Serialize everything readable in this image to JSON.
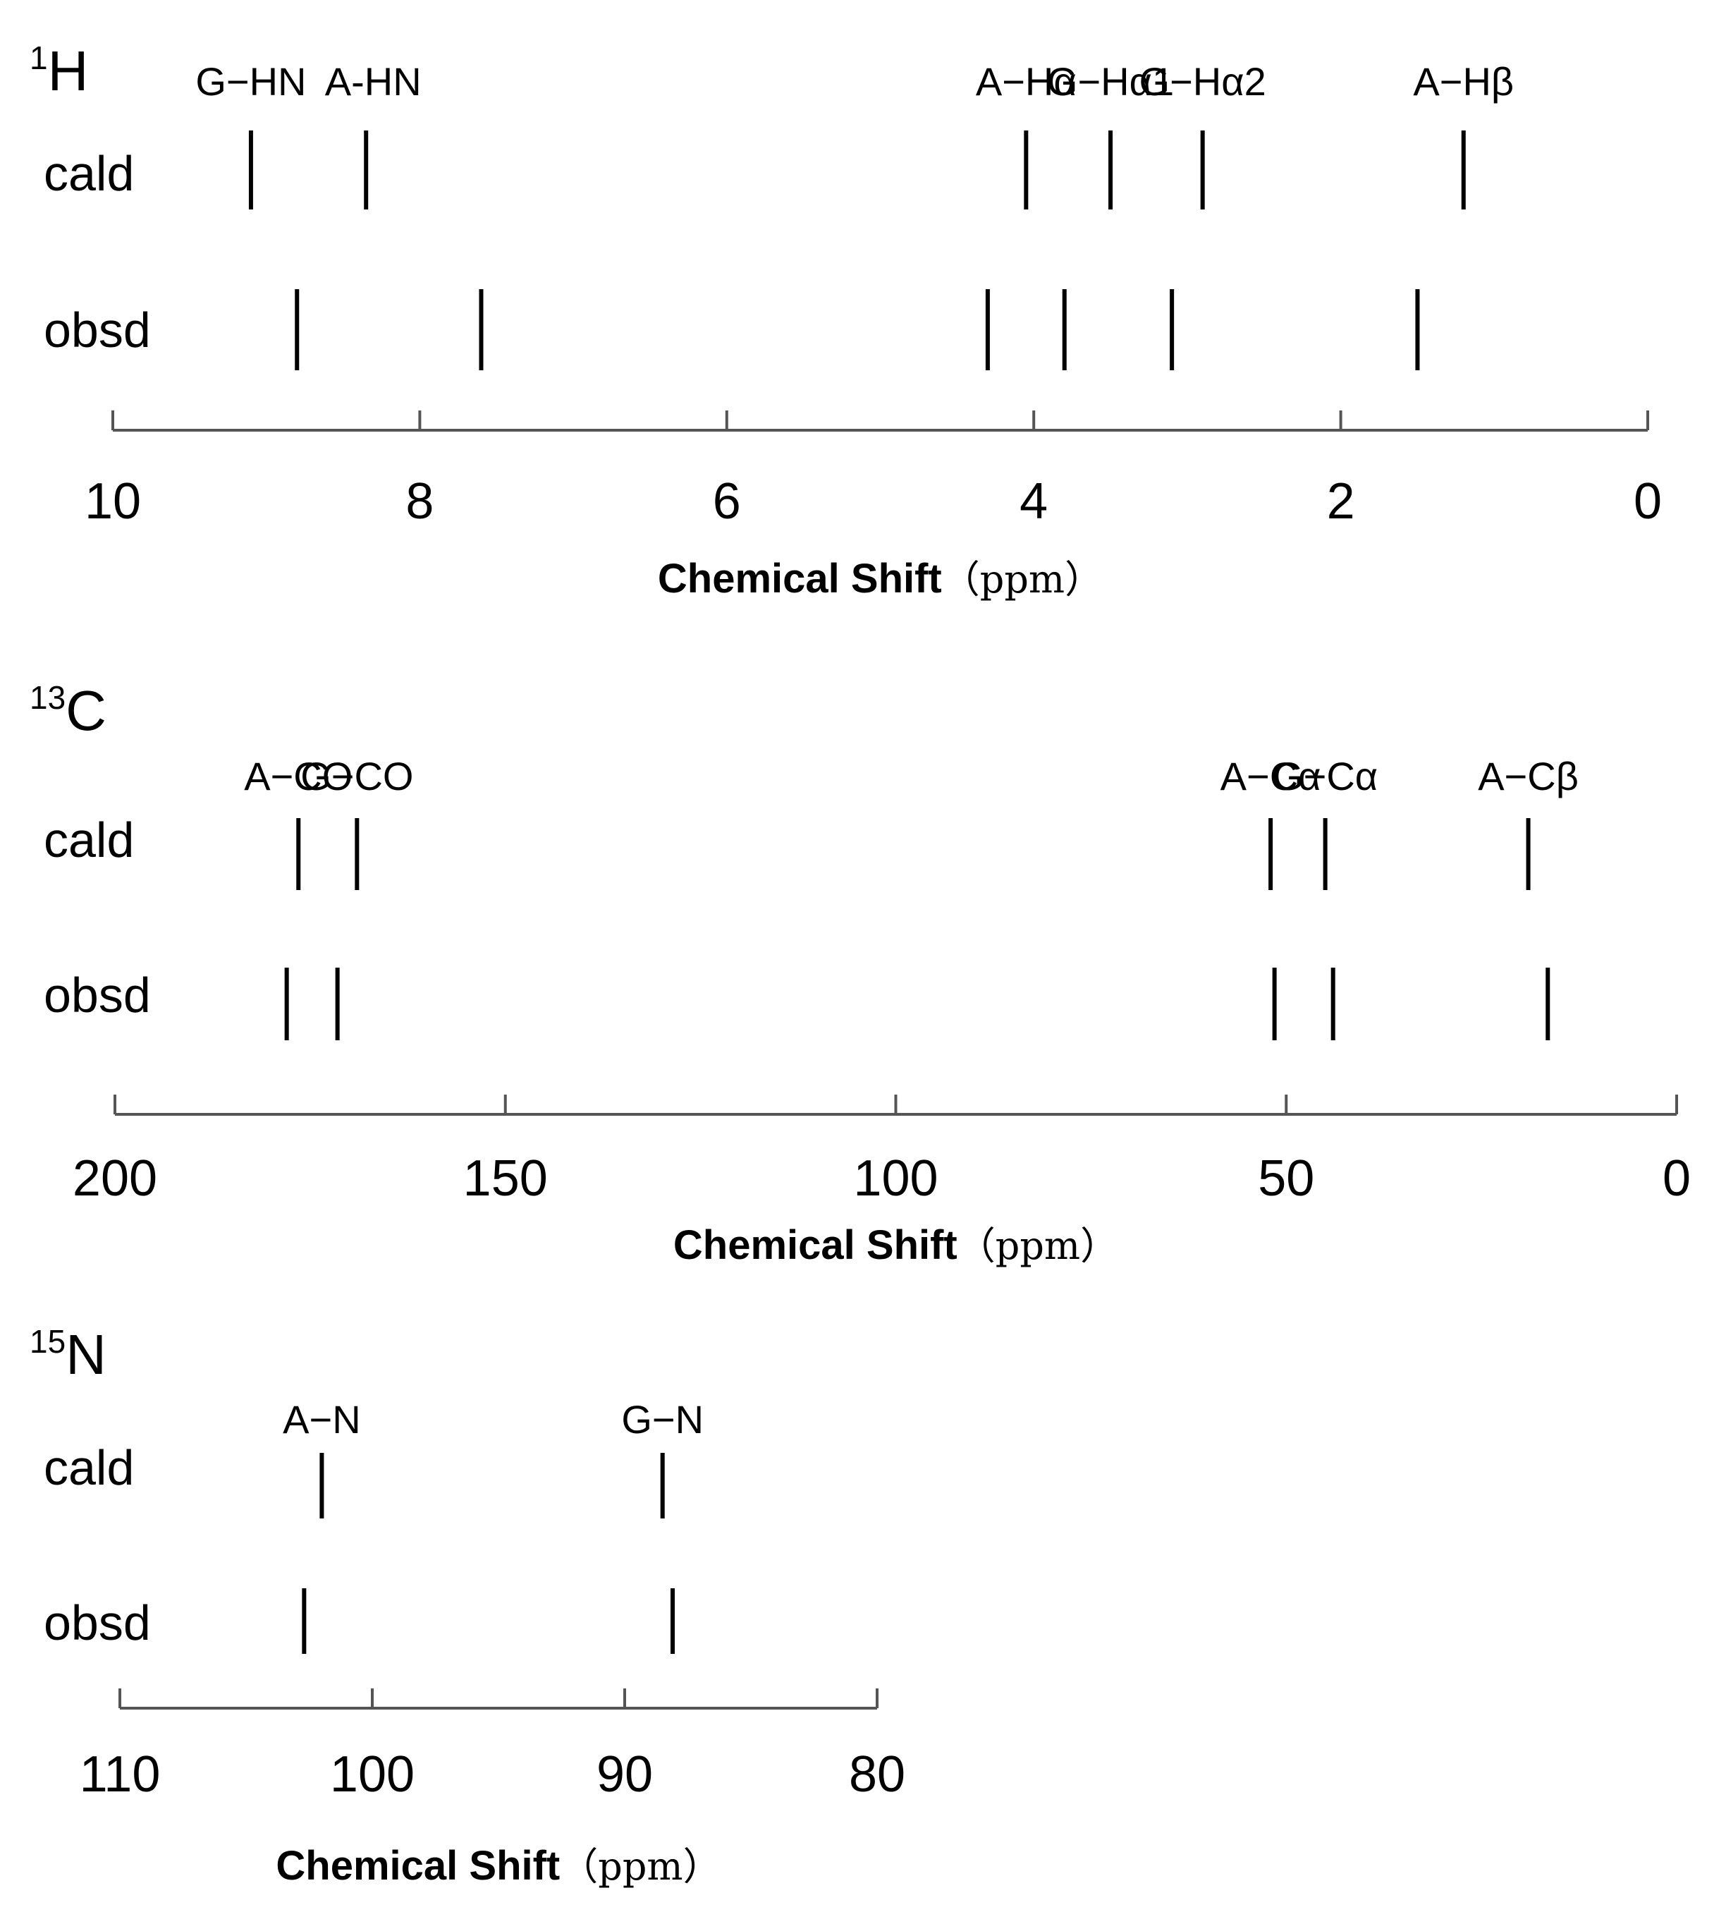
{
  "chart_data": [
    {
      "type": "stick-spectrum",
      "nucleus": {
        "mass": "1",
        "symbol": "H"
      },
      "xlabel": "Chemical Shift",
      "xunit": "（ppm）",
      "xlim": [
        10,
        0
      ],
      "xticks": [
        "10",
        "8",
        "6",
        "4",
        "2",
        "0"
      ],
      "rows": [
        "cald",
        "obsd"
      ],
      "peaks": [
        {
          "label": "G−HN",
          "cald": 9.1,
          "obsd": 8.8
        },
        {
          "label": "A-HN",
          "cald": 8.35,
          "obsd": 7.6
        },
        {
          "label": "A−Hα",
          "cald": 4.05,
          "obsd": 4.3
        },
        {
          "label": "G−Hα1",
          "cald": 3.5,
          "obsd": 3.8
        },
        {
          "label": "G−Hα2",
          "cald": 2.9,
          "obsd": 3.1
        },
        {
          "label": "A−Hβ",
          "cald": 1.2,
          "obsd": 1.5
        }
      ]
    },
    {
      "type": "stick-spectrum",
      "nucleus": {
        "mass": "13",
        "symbol": "C"
      },
      "xlabel": "Chemical Shift",
      "xunit": "（ppm）",
      "xlim": [
        200,
        0
      ],
      "xticks": [
        "200",
        "150",
        "100",
        "50",
        "0"
      ],
      "rows": [
        "cald",
        "obsd"
      ],
      "peaks": [
        {
          "label": "A−CO",
          "cald": 176.5,
          "obsd": 178.0
        },
        {
          "label": "G−CO",
          "cald": 169.0,
          "obsd": 171.5
        },
        {
          "label": "A−Cα",
          "cald": 52.0,
          "obsd": 51.5
        },
        {
          "label": "G−Cα",
          "cald": 45.0,
          "obsd": 44.0
        },
        {
          "label": "A−Cβ",
          "cald": 19.0,
          "obsd": 16.5
        }
      ]
    },
    {
      "type": "stick-spectrum",
      "nucleus": {
        "mass": "15",
        "symbol": "N"
      },
      "xlabel": "Chemical Shift",
      "xunit": "（ppm）",
      "xlim": [
        110,
        80
      ],
      "xticks": [
        "110",
        "100",
        "90",
        "80"
      ],
      "rows": [
        "cald",
        "obsd"
      ],
      "peaks": [
        {
          "label": "A−N",
          "cald": 102.0,
          "obsd": 102.7
        },
        {
          "label": "G−N",
          "cald": 88.5,
          "obsd": 88.1
        }
      ]
    }
  ]
}
